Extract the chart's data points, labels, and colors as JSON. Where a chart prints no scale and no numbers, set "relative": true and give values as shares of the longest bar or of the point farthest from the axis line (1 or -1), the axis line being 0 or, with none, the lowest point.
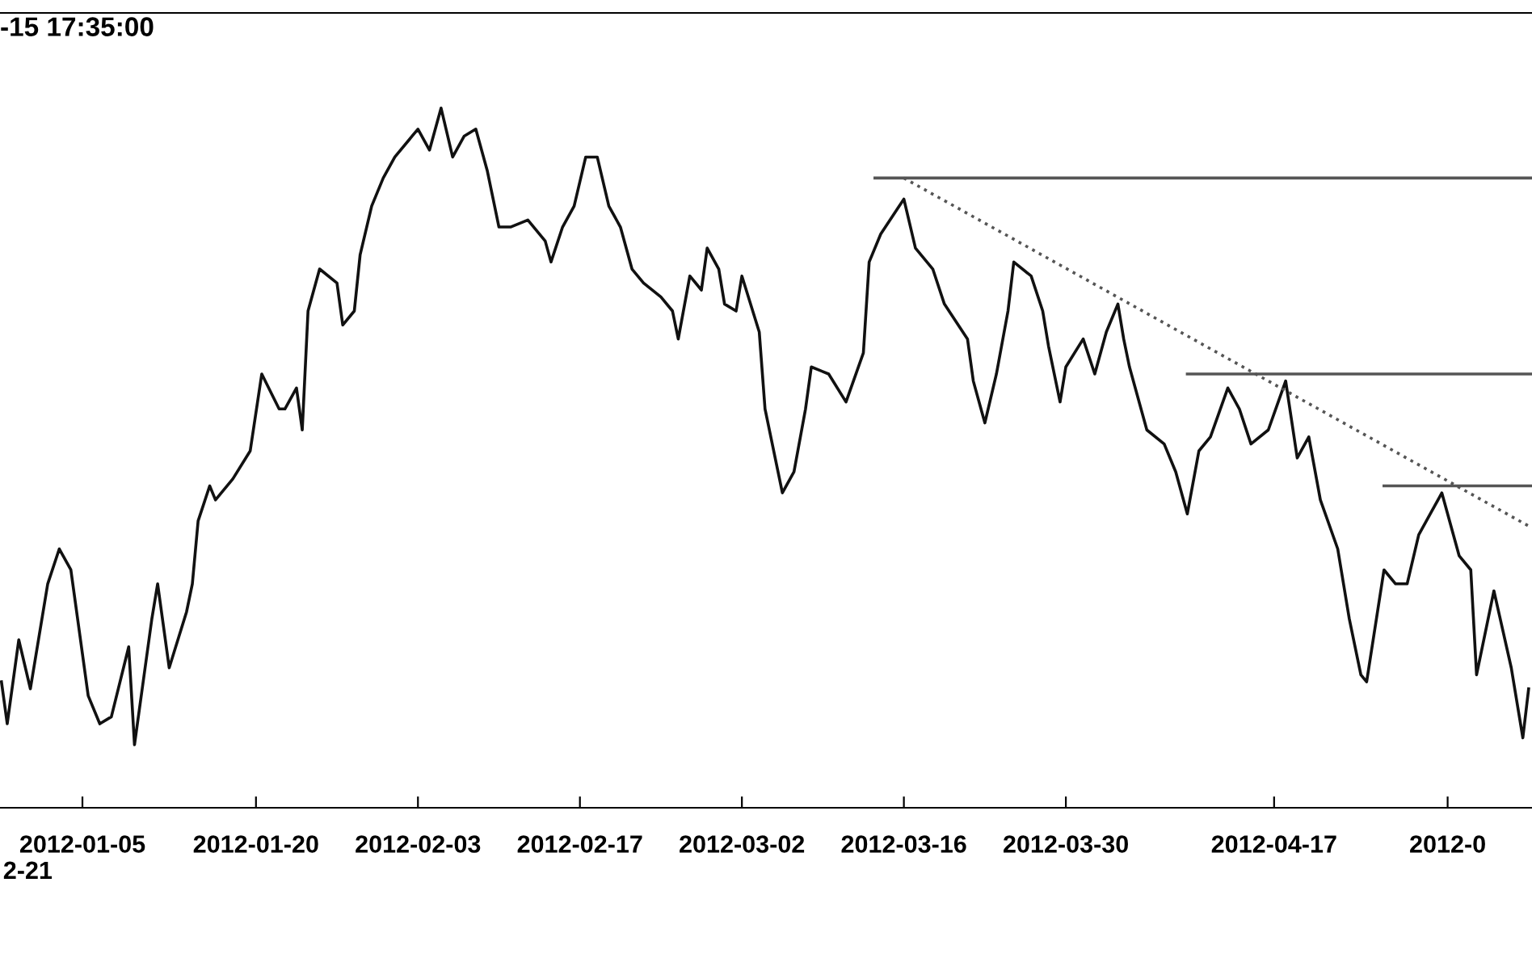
{
  "chart_data": {
    "type": "line",
    "title": "-15 17:35:00",
    "relative": true,
    "legend": false,
    "marker": "none",
    "xlim": [
      "2011-12-28T21:00",
      "2012-05-09T07:00"
    ],
    "xticks": [
      "2012-01-05",
      "2012-01-20",
      "2012-02-03",
      "2012-02-17",
      "2012-03-02",
      "2012-03-16",
      "2012-03-30",
      "2012-04-17",
      {
        "value": "2012-05-02",
        "label": "2012-0"
      }
    ],
    "annotations": [
      "2-21"
    ],
    "series": [
      {
        "color": "#111111",
        "line_style": "solid",
        "x": [
          "2011-12-29",
          "2011-12-29T12:00",
          "2011-12-30T12:00",
          "2011-12-31T12:00",
          "2012-01-02",
          "2012-01-03",
          "2012-01-04",
          "2012-01-05T12:00",
          "2012-01-06T12:00",
          "2012-01-07T12:00",
          "2012-01-09",
          "2012-01-09T12:00",
          "2012-01-11",
          "2012-01-11T12:00",
          "2012-01-12T12:00",
          "2012-01-14",
          "2012-01-14T12:00",
          "2012-01-15",
          "2012-01-16",
          "2012-01-16T12:00",
          "2012-01-18",
          "2012-01-19T12:00",
          "2012-01-20T12:00",
          "2012-01-22",
          "2012-01-22T12:00",
          "2012-01-23T12:00",
          "2012-01-24",
          "2012-01-24T12:00",
          "2012-01-25T12:00",
          "2012-01-27",
          "2012-01-27T12:00",
          "2012-01-28T12:00",
          "2012-01-29",
          "2012-01-30",
          "2012-01-31",
          "2012-02-01",
          "2012-02-02T12:00",
          "2012-02-03",
          "2012-02-04",
          "2012-02-05",
          "2012-02-06",
          "2012-02-07",
          "2012-02-08",
          "2012-02-09",
          "2012-02-10",
          "2012-02-11",
          "2012-02-12T12:00",
          "2012-02-14",
          "2012-02-14T12:00",
          "2012-02-15T12:00",
          "2012-02-16T12:00",
          "2012-02-17T12:00",
          "2012-02-18T12:00",
          "2012-02-19T12:00",
          "2012-02-20T12:00",
          "2012-02-21T12:00",
          "2012-02-22T12:00",
          "2012-02-24",
          "2012-02-25",
          "2012-02-25T12:00",
          "2012-02-26T12:00",
          "2012-02-27T12:00",
          "2012-02-28",
          "2012-02-29",
          "2012-02-29T12:00",
          "2012-03-01T12:00",
          "2012-03-02",
          "2012-03-03T12:00",
          "2012-03-04",
          "2012-03-05T12:00",
          "2012-03-06T12:00",
          "2012-03-07T12:00",
          "2012-03-08",
          "2012-03-09T12:00",
          "2012-03-11",
          "2012-03-12T12:00",
          "2012-03-13",
          "2012-03-14",
          "2012-03-16",
          "2012-03-17",
          "2012-03-18T12:00",
          "2012-03-19T12:00",
          "2012-03-21T12:00",
          "2012-03-22",
          "2012-03-23",
          "2012-03-24",
          "2012-03-25",
          "2012-03-25T12:00",
          "2012-03-27",
          "2012-03-28",
          "2012-03-28T12:00",
          "2012-03-29T12:00",
          "2012-03-30",
          "2012-03-31T12:00",
          "2012-04-01T12:00",
          "2012-04-02T12:00",
          "2012-04-03T12:00",
          "2012-04-04",
          "2012-04-04T12:00",
          "2012-04-06",
          "2012-04-07T12:00",
          "2012-04-08T12:00",
          "2012-04-09T12:00",
          "2012-04-10T12:00",
          "2012-04-11T12:00",
          "2012-04-13",
          "2012-04-14",
          "2012-04-15",
          "2012-04-16T12:00",
          "2012-04-18",
          "2012-04-19",
          "2012-04-20",
          "2012-04-21",
          "2012-04-22T12:00",
          "2012-04-23T12:00",
          "2012-04-24T12:00",
          "2012-04-25",
          "2012-04-26T12:00",
          "2012-04-27T12:00",
          "2012-04-28T12:00",
          "2012-04-29T12:00",
          "2012-04-30T12:00",
          "2012-05-01T12:00",
          "2012-05-03",
          "2012-05-04",
          "2012-05-04T12:00",
          "2012-05-06",
          "2012-05-07T12:00",
          "2012-05-08T12:00",
          "2012-05-09"
        ],
        "values": [
          0.18,
          0.12,
          0.24,
          0.17,
          0.32,
          0.37,
          0.34,
          0.16,
          0.12,
          0.13,
          0.23,
          0.09,
          0.27,
          0.32,
          0.2,
          0.28,
          0.32,
          0.41,
          0.46,
          0.44,
          0.47,
          0.51,
          0.62,
          0.57,
          0.57,
          0.6,
          0.54,
          0.71,
          0.77,
          0.75,
          0.69,
          0.71,
          0.79,
          0.86,
          0.9,
          0.93,
          0.96,
          0.97,
          0.94,
          1.0,
          0.93,
          0.96,
          0.97,
          0.91,
          0.83,
          0.83,
          0.84,
          0.81,
          0.78,
          0.83,
          0.86,
          0.93,
          0.93,
          0.86,
          0.83,
          0.77,
          0.75,
          0.73,
          0.71,
          0.67,
          0.76,
          0.74,
          0.8,
          0.77,
          0.72,
          0.71,
          0.76,
          0.68,
          0.57,
          0.45,
          0.48,
          0.57,
          0.63,
          0.62,
          0.58,
          0.65,
          0.78,
          0.82,
          0.87,
          0.8,
          0.77,
          0.72,
          0.67,
          0.61,
          0.55,
          0.62,
          0.71,
          0.78,
          0.76,
          0.71,
          0.66,
          0.58,
          0.63,
          0.67,
          0.62,
          0.68,
          0.72,
          0.67,
          0.63,
          0.54,
          0.52,
          0.48,
          0.42,
          0.51,
          0.53,
          0.6,
          0.57,
          0.52,
          0.54,
          0.61,
          0.5,
          0.53,
          0.44,
          0.37,
          0.27,
          0.19,
          0.18,
          0.34,
          0.32,
          0.32,
          0.39,
          0.42,
          0.45,
          0.36,
          0.34,
          0.19,
          0.31,
          0.2,
          0.1,
          0.17
        ]
      },
      {
        "color": "#555555",
        "line_style": "solid",
        "x": [
          "2012-03-13T12:00",
          "2012-05-09T07:00"
        ],
        "values": [
          0.9,
          0.9
        ]
      },
      {
        "color": "#555555",
        "line_style": "solid",
        "x": [
          "2012-04-09T12:00",
          "2012-05-09T07:00"
        ],
        "values": [
          0.62,
          0.62
        ]
      },
      {
        "color": "#555555",
        "line_style": "solid",
        "x": [
          "2012-04-26T12:00",
          "2012-05-09T07:00"
        ],
        "values": [
          0.46,
          0.46
        ]
      },
      {
        "color": "#555555",
        "line_style": "dotted",
        "x": [
          "2012-03-16",
          "2012-05-09T07:00"
        ],
        "values": [
          0.9,
          0.4
        ]
      }
    ]
  }
}
